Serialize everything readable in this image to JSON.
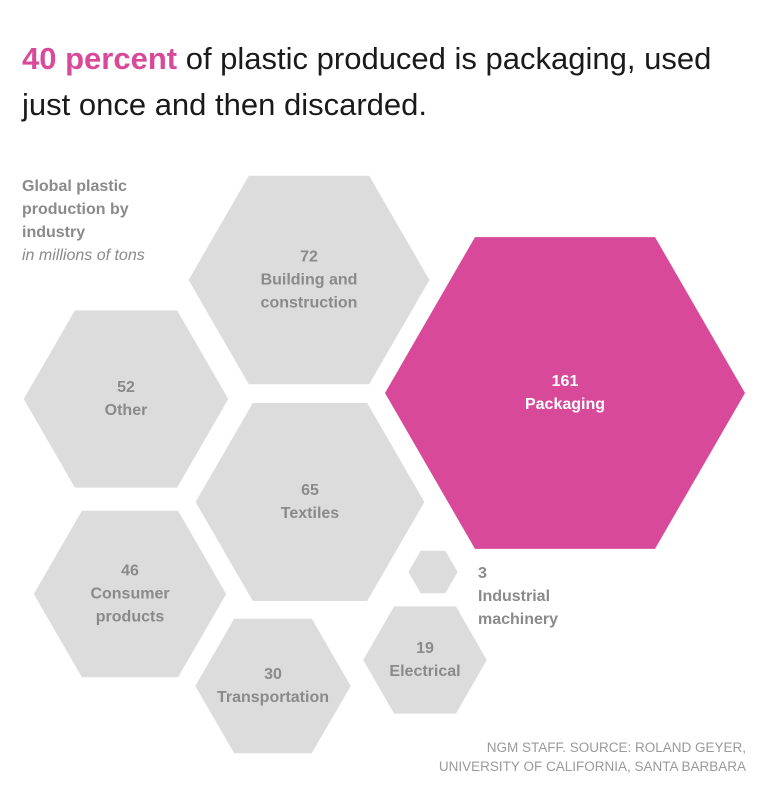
{
  "chart_data": {
    "type": "hexagon",
    "title_highlight": "40 percent",
    "title": "of plastic produced is packaging, used just once and then discarded.",
    "subtitle": "Global plastic production by industry",
    "units": "in millions of tons",
    "categories": [
      "Packaging",
      "Building and construction",
      "Textiles",
      "Other",
      "Consumer products",
      "Transportation",
      "Electrical",
      "Industrial machinery"
    ],
    "values": [
      161,
      72,
      65,
      52,
      46,
      30,
      19,
      3
    ],
    "colors": [
      "#d8499a",
      "#dcdcdc",
      "#dcdcdc",
      "#dcdcdc",
      "#dcdcdc",
      "#dcdcdc",
      "#dcdcdc",
      "#dcdcdc"
    ],
    "source": "NGM STAFF. SOURCE: ROLAND GEYER, UNIVERSITY OF CALIFORNIA, SANTA BARBARA"
  }
}
